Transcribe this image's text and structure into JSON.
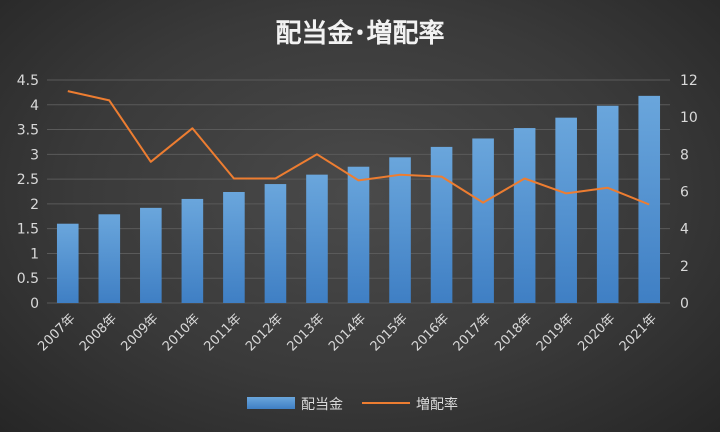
{
  "chart_data": {
    "type": "bar",
    "title": "配当金･増配率",
    "categories": [
      "2007年",
      "2008年",
      "2009年",
      "2010年",
      "2011年",
      "2012年",
      "2013年",
      "2014年",
      "2015年",
      "2016年",
      "2017年",
      "2018年",
      "2019年",
      "2020年",
      "2021年"
    ],
    "series": [
      {
        "name": "配当金",
        "type": "bar",
        "axis": "left",
        "color": "#5b9bd5",
        "values": [
          1.6,
          1.79,
          1.92,
          2.1,
          2.24,
          2.4,
          2.59,
          2.75,
          2.94,
          3.15,
          3.32,
          3.53,
          3.74,
          3.98,
          4.18
        ]
      },
      {
        "name": "増配率",
        "type": "line",
        "axis": "right",
        "color": "#ed7d31",
        "values": [
          11.4,
          10.9,
          7.6,
          9.4,
          6.7,
          6.7,
          8.0,
          6.6,
          6.9,
          6.8,
          5.4,
          6.7,
          5.9,
          6.2,
          5.3
        ]
      }
    ],
    "left_axis": {
      "min": 0,
      "max": 4.5,
      "step": 0.5,
      "ticks": [
        "0",
        "0.5",
        "1",
        "1.5",
        "2",
        "2.5",
        "3",
        "3.5",
        "4",
        "4.5"
      ]
    },
    "right_axis": {
      "min": 0,
      "max": 12,
      "step": 2,
      "ticks": [
        "0",
        "2",
        "4",
        "6",
        "8",
        "10",
        "12"
      ]
    },
    "grid": true,
    "legend": "bottom"
  }
}
